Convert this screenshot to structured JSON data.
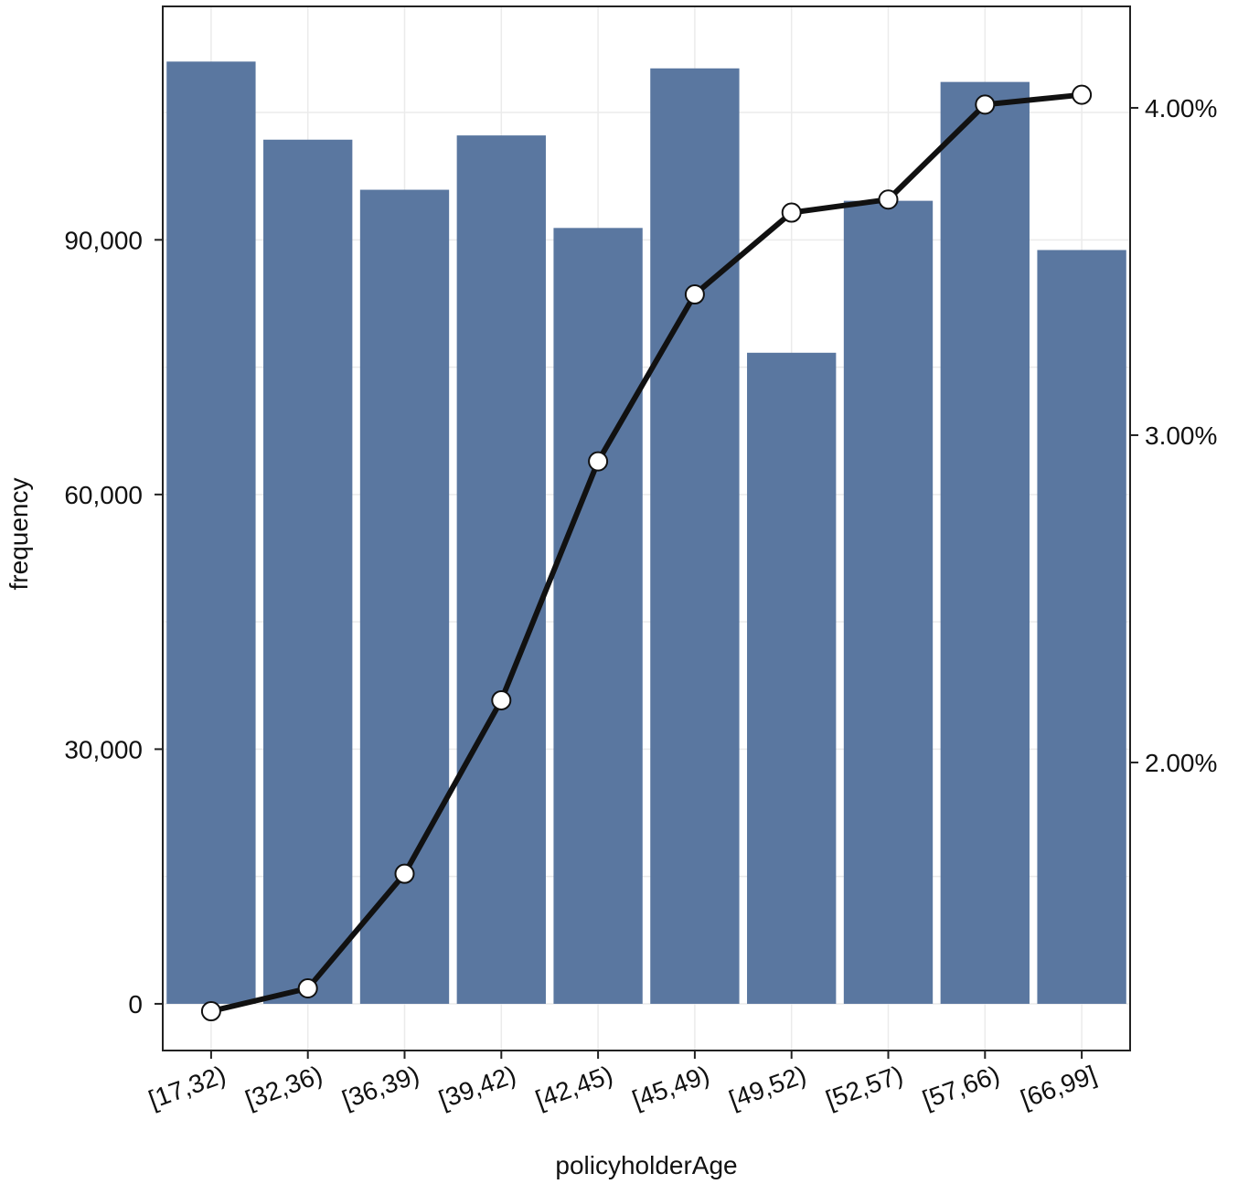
{
  "chart_data": {
    "type": "bar",
    "xlabel": "policyholderAge",
    "ylabel": "frequency",
    "categories": [
      "[17,32)",
      "[32,36)",
      "[36,39)",
      "[39,42)",
      "[42,45)",
      "[45,49)",
      "[49,52)",
      "[52,57)",
      "[57,66)",
      "[66,99]"
    ],
    "y_ticks": [
      0,
      30000,
      60000,
      90000
    ],
    "y_tick_labels": [
      "0",
      "30,000",
      "60,000",
      "90,000"
    ],
    "ylim": [
      -5500,
      117500
    ],
    "series": [
      {
        "type": "bar",
        "axis": "left",
        "values": [
          111000,
          101800,
          95900,
          102300,
          91400,
          110200,
          76700,
          94600,
          108600,
          88800
        ],
        "color": "#5a77a0"
      },
      {
        "type": "line",
        "axis": "right",
        "values": [
          1.24,
          1.31,
          1.66,
          2.19,
          2.92,
          3.43,
          3.68,
          3.72,
          4.01,
          4.04
        ],
        "color": "#111111"
      }
    ],
    "y2_ticks": [
      2.0,
      3.0,
      4.0
    ],
    "y2_tick_labels": [
      "2.00%",
      "3.00%",
      "4.00%"
    ],
    "y2lim": [
      1.12,
      4.31
    ],
    "grid": true,
    "legend": "none"
  }
}
